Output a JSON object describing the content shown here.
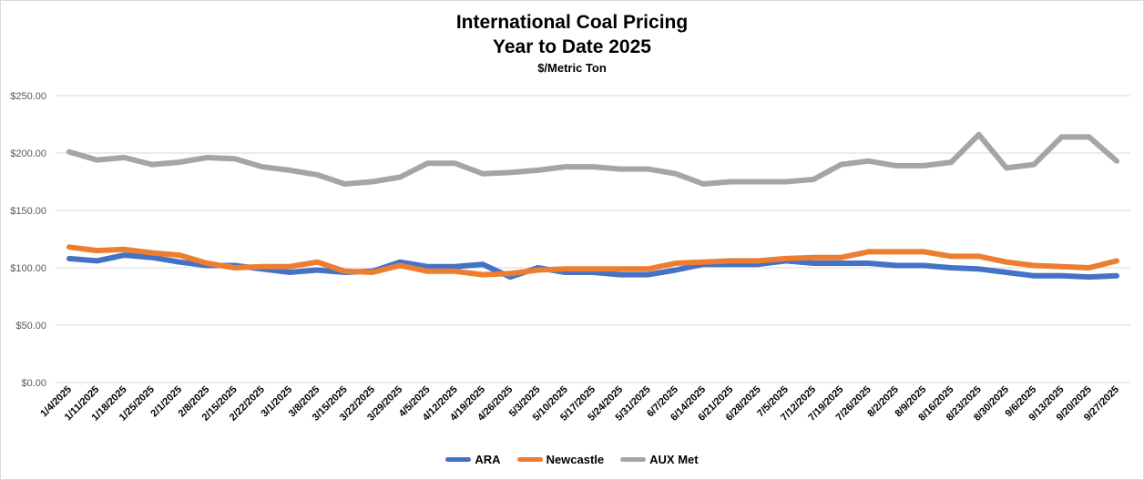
{
  "chart_data": {
    "type": "line",
    "title": "International Coal Pricing",
    "subtitle": "Year to Date 2025",
    "unit_label": "$/Metric Ton",
    "ylim": [
      0,
      250
    ],
    "yticks": [
      "$0.00",
      "$50.00",
      "$100.00",
      "$150.00",
      "$200.00",
      "$250.00"
    ],
    "ytick_values": [
      0,
      50,
      100,
      150,
      200,
      250
    ],
    "grid": true,
    "legend_position": "bottom",
    "x": [
      "1/4/2025",
      "1/11/2025",
      "1/18/2025",
      "1/25/2025",
      "2/1/2025",
      "2/8/2025",
      "2/15/2025",
      "2/22/2025",
      "3/1/2025",
      "3/8/2025",
      "3/15/2025",
      "3/22/2025",
      "3/29/2025",
      "4/5/2025",
      "4/12/2025",
      "4/19/2025",
      "4/26/2025",
      "5/3/2025",
      "5/10/2025",
      "5/17/2025",
      "5/24/2025",
      "5/31/2025",
      "6/7/2025",
      "6/14/2025",
      "6/21/2025",
      "6/28/2025",
      "7/5/2025",
      "7/12/2025",
      "7/19/2025",
      "7/26/2025",
      "8/2/2025",
      "8/9/2025",
      "8/16/2025",
      "8/23/2025",
      "8/30/2025",
      "9/6/2025",
      "9/13/2025",
      "9/20/2025",
      "9/27/2025"
    ],
    "series": [
      {
        "name": "ARA",
        "color": "#4472C4",
        "values": [
          108,
          106,
          111,
          109,
          105,
          102,
          102,
          99,
          96,
          98,
          96,
          97,
          105,
          101,
          101,
          103,
          92,
          100,
          96,
          96,
          94,
          94,
          98,
          103,
          103,
          103,
          106,
          104,
          104,
          104,
          102,
          102,
          100,
          99,
          96,
          93,
          93,
          92,
          93
        ]
      },
      {
        "name": "Newcastle",
        "color": "#ED7D31",
        "values": [
          118,
          115,
          116,
          113,
          111,
          104,
          100,
          101,
          101,
          105,
          97,
          96,
          102,
          97,
          97,
          94,
          95,
          98,
          99,
          99,
          99,
          99,
          104,
          105,
          106,
          106,
          108,
          109,
          109,
          114,
          114,
          114,
          110,
          110,
          105,
          102,
          101,
          100,
          106
        ]
      },
      {
        "name": "AUX Met",
        "color": "#A5A5A5",
        "values": [
          201,
          194,
          196,
          190,
          192,
          196,
          195,
          188,
          185,
          181,
          173,
          175,
          179,
          191,
          191,
          182,
          183,
          185,
          188,
          188,
          186,
          186,
          182,
          173,
          175,
          175,
          175,
          177,
          190,
          193,
          189,
          189,
          192,
          216,
          187,
          190,
          214,
          214,
          193
        ]
      }
    ]
  }
}
